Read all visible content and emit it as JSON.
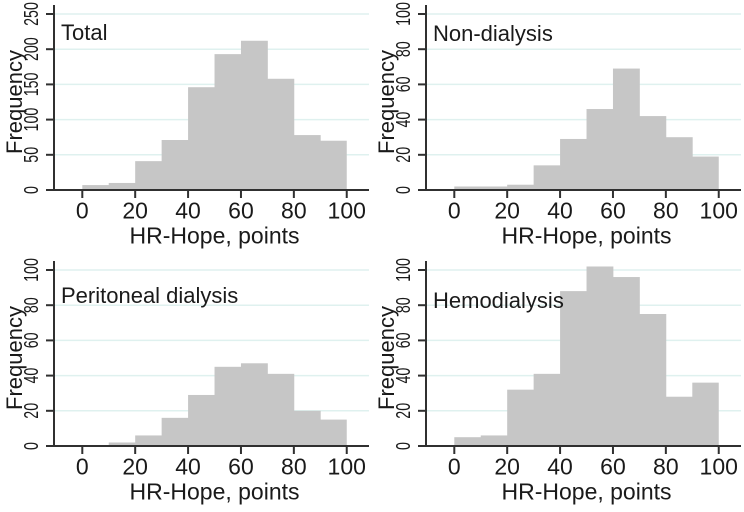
{
  "figure": {
    "kind": "2x2 histogram grid",
    "background": "#ffffff"
  },
  "colors": {
    "bar_fill": "#c6c6c6",
    "gridline": "#dff1ef",
    "axis_line": "#303030",
    "text": "#1a1a1a"
  },
  "chart_data": [
    {
      "type": "bar",
      "title": "Total",
      "xlabel": "HR-Hope, points",
      "ylabel": "Frequency",
      "bin_edges": [
        0,
        10,
        20,
        30,
        40,
        50,
        60,
        70,
        80,
        90,
        100
      ],
      "values": [
        7,
        10,
        41,
        71,
        146,
        193,
        212,
        158,
        78,
        70
      ],
      "xlim": [
        0,
        100
      ],
      "ylim": [
        0,
        250
      ],
      "xticks": [
        0,
        20,
        40,
        60,
        80,
        100
      ],
      "yticks": [
        0,
        50,
        100,
        150,
        200,
        250
      ],
      "grid": true,
      "legend": "none"
    },
    {
      "type": "bar",
      "title": "Non-dialysis",
      "xlabel": "HR-Hope, points",
      "ylabel": "Frequency",
      "bin_edges": [
        0,
        10,
        20,
        30,
        40,
        50,
        60,
        70,
        80,
        90,
        100
      ],
      "values": [
        2,
        2,
        3,
        14,
        29,
        46,
        69,
        42,
        30,
        19
      ],
      "xlim": [
        0,
        100
      ],
      "ylim": [
        0,
        100
      ],
      "xticks": [
        0,
        20,
        40,
        60,
        80,
        100
      ],
      "yticks": [
        0,
        20,
        40,
        60,
        80,
        100
      ],
      "grid": true,
      "legend": "none"
    },
    {
      "type": "bar",
      "title": "Peritoneal dialysis",
      "xlabel": "HR-Hope, points",
      "ylabel": "Frequency",
      "bin_edges": [
        0,
        10,
        20,
        30,
        40,
        50,
        60,
        70,
        80,
        90,
        100
      ],
      "values": [
        0,
        2,
        6,
        16,
        29,
        45,
        47,
        41,
        20,
        15
      ],
      "xlim": [
        0,
        100
      ],
      "ylim": [
        0,
        100
      ],
      "xticks": [
        0,
        20,
        40,
        60,
        80,
        100
      ],
      "yticks": [
        0,
        20,
        40,
        60,
        80,
        100
      ],
      "grid": true,
      "legend": "none"
    },
    {
      "type": "bar",
      "title": "Hemodialysis",
      "xlabel": "HR-Hope, points",
      "ylabel": "Frequency",
      "bin_edges": [
        0,
        10,
        20,
        30,
        40,
        50,
        60,
        70,
        80,
        90,
        100
      ],
      "values": [
        5,
        6,
        32,
        41,
        88,
        102,
        96,
        75,
        28,
        36
      ],
      "xlim": [
        0,
        100
      ],
      "ylim": [
        0,
        100
      ],
      "xticks": [
        0,
        20,
        40,
        60,
        80,
        100
      ],
      "yticks": [
        0,
        20,
        40,
        60,
        80,
        100
      ],
      "grid": true,
      "legend": "none"
    }
  ]
}
